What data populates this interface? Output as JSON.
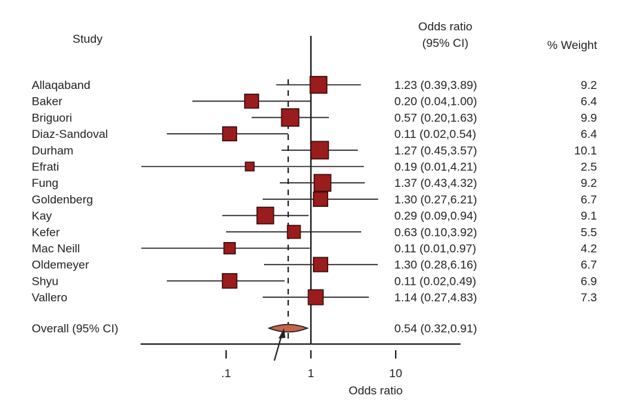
{
  "headers": {
    "study": "Study",
    "or_line1": "Odds ratio",
    "or_line2": "(95% CI)",
    "weight": "% Weight"
  },
  "colors": {
    "marker_fill": "#9b1c1c",
    "marker_stroke": "#3a0d0d",
    "diamond_fill": "#c8644b",
    "line": "#222222"
  },
  "chart_data": {
    "type": "forest",
    "xscale": "log",
    "xlabel": "Odds ratio",
    "xticks": [
      0.1,
      1,
      10
    ],
    "xtick_labels": [
      ".1",
      "1",
      "10"
    ],
    "null_line": 1,
    "pooled_line": 0.54,
    "studies": [
      {
        "name": "Allaqaband",
        "or": 1.23,
        "lo": 0.39,
        "hi": 3.89,
        "text": "1.23 (0.39,3.89)",
        "weight": 9.2,
        "weight_text": "9.2"
      },
      {
        "name": "Baker",
        "or": 0.2,
        "lo": 0.04,
        "hi": 1.0,
        "text": "0.20 (0.04,1.00)",
        "weight": 6.4,
        "weight_text": "6.4"
      },
      {
        "name": "Briguori",
        "or": 0.57,
        "lo": 0.2,
        "hi": 1.63,
        "text": "0.57 (0.20,1.63)",
        "weight": 9.9,
        "weight_text": "9.9"
      },
      {
        "name": "Diaz-Sandoval",
        "or": 0.11,
        "lo": 0.02,
        "hi": 0.54,
        "text": "0.11 (0.02,0.54)",
        "weight": 6.4,
        "weight_text": "6.4"
      },
      {
        "name": "Durham",
        "or": 1.27,
        "lo": 0.45,
        "hi": 3.57,
        "text": "1.27 (0.45,3.57)",
        "weight": 10.1,
        "weight_text": "10.1"
      },
      {
        "name": "Efrati",
        "or": 0.19,
        "lo": 0.01,
        "hi": 4.21,
        "text": "0.19 (0.01,4.21)",
        "weight": 2.5,
        "weight_text": "2.5"
      },
      {
        "name": "Fung",
        "or": 1.37,
        "lo": 0.43,
        "hi": 4.32,
        "text": "1.37 (0.43,4.32)",
        "weight": 9.2,
        "weight_text": "9.2"
      },
      {
        "name": "Goldenberg",
        "or": 1.3,
        "lo": 0.27,
        "hi": 6.21,
        "text": "1.30 (0.27,6.21)",
        "weight": 6.7,
        "weight_text": "6.7"
      },
      {
        "name": "Kay",
        "or": 0.29,
        "lo": 0.09,
        "hi": 0.94,
        "text": "0.29 (0.09,0.94)",
        "weight": 9.1,
        "weight_text": "9.1"
      },
      {
        "name": "Kefer",
        "or": 0.63,
        "lo": 0.1,
        "hi": 3.92,
        "text": "0.63 (0.10,3.92)",
        "weight": 5.5,
        "weight_text": "5.5"
      },
      {
        "name": "Mac Neill",
        "or": 0.11,
        "lo": 0.01,
        "hi": 0.97,
        "text": "0.11 (0.01,0.97)",
        "weight": 4.2,
        "weight_text": "4.2"
      },
      {
        "name": "Oldemeyer",
        "or": 1.3,
        "lo": 0.28,
        "hi": 6.16,
        "text": "1.30 (0.28,6.16)",
        "weight": 6.7,
        "weight_text": "6.7"
      },
      {
        "name": "Shyu",
        "or": 0.11,
        "lo": 0.02,
        "hi": 0.49,
        "text": "0.11 (0.02,0.49)",
        "weight": 6.9,
        "weight_text": "6.9"
      },
      {
        "name": "Vallero",
        "or": 1.14,
        "lo": 0.27,
        "hi": 4.83,
        "text": "1.14 (0.27,4.83)",
        "weight": 7.3,
        "weight_text": "7.3"
      }
    ],
    "overall": {
      "label": "Overall (95% CI)",
      "or": 0.54,
      "lo": 0.32,
      "hi": 0.91,
      "text": "0.54 (0.32,0.91)"
    }
  }
}
